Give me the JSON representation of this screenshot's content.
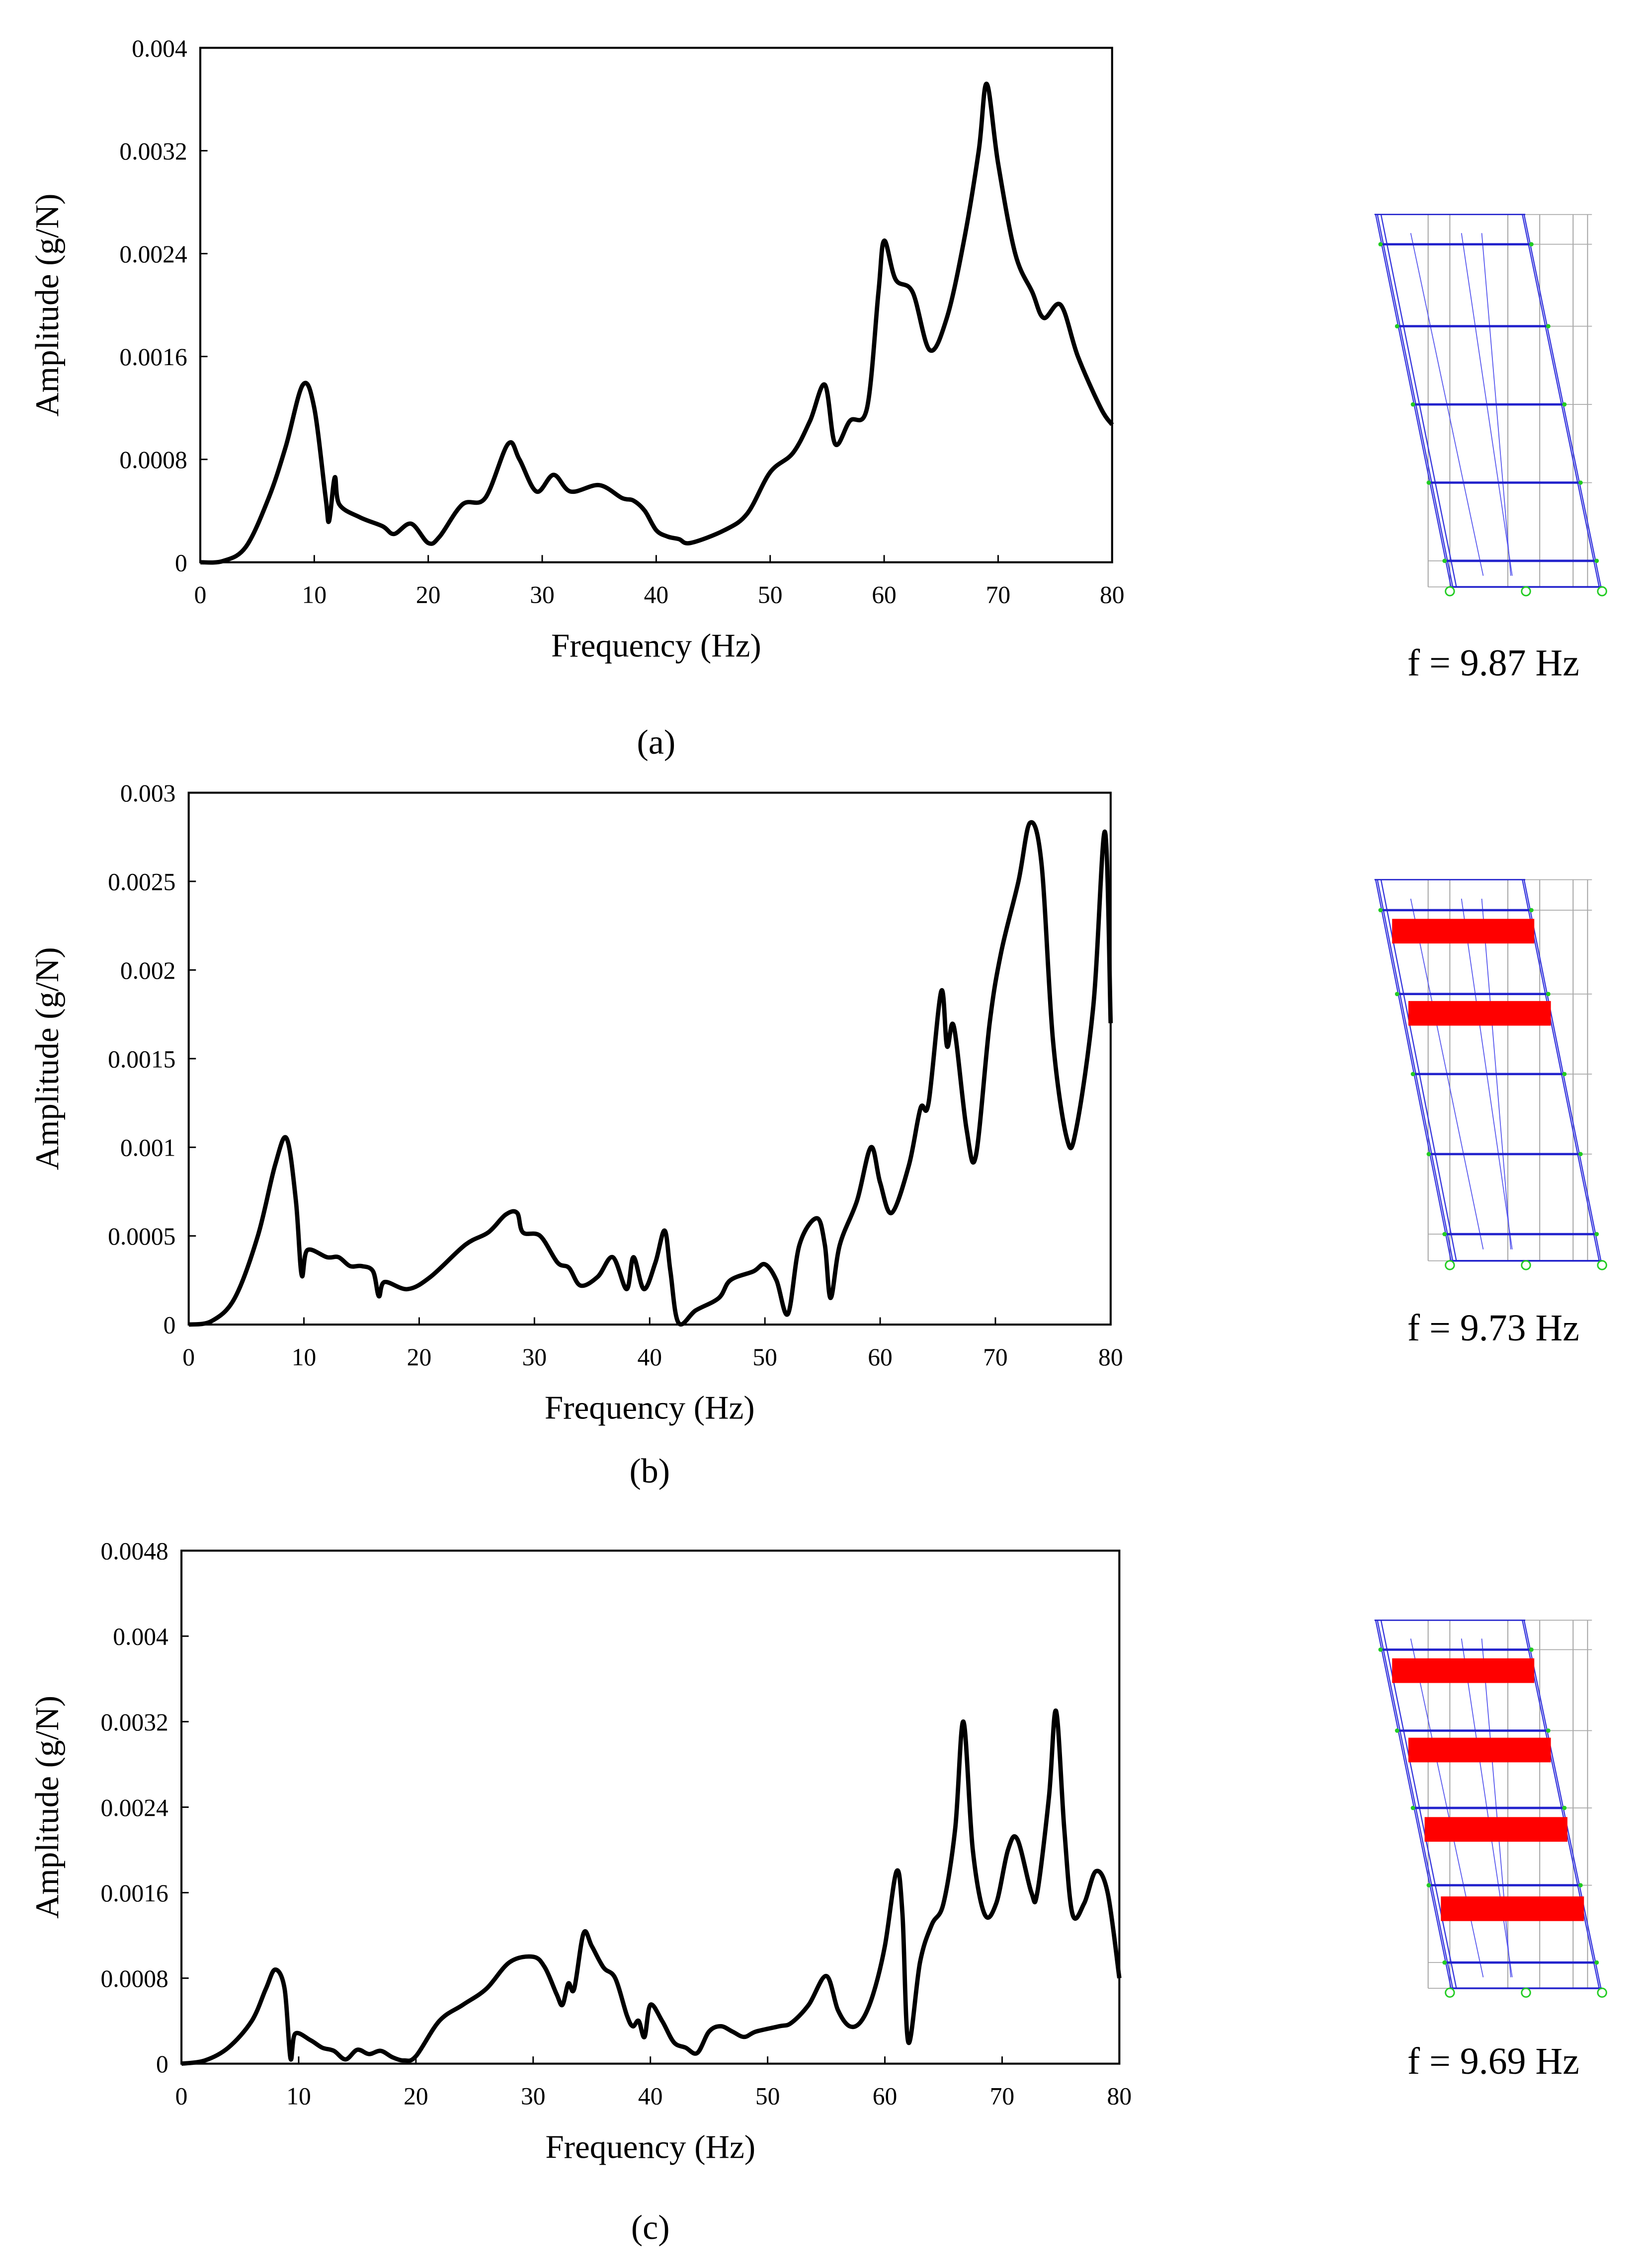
{
  "chart_data": [
    {
      "type": "line",
      "xlabel": "Frequency (Hz)",
      "ylabel": "Amplitude (g/N)",
      "caption": "(a)",
      "mode_label": "f = 9.87 Hz",
      "color": "#000000",
      "xlim": [
        0,
        80
      ],
      "xticks": [
        0,
        10,
        20,
        30,
        40,
        50,
        60,
        70,
        80
      ],
      "ylim": [
        0,
        0.004
      ],
      "yticks": [
        0,
        0.0008,
        0.0016,
        0.0024,
        0.0032,
        0.004
      ],
      "x": [
        0,
        2,
        4,
        6,
        7.5,
        9,
        10,
        11,
        11.3,
        11.8,
        12.2,
        14,
        16,
        17,
        18.5,
        20,
        21,
        23,
        25,
        27,
        28,
        29.5,
        31,
        32.5,
        35,
        37,
        38,
        39,
        40,
        41,
        42,
        43,
        46,
        48,
        50,
        52,
        53.5,
        54.8,
        55.7,
        57,
        58.5,
        59.5,
        60,
        61,
        62.5,
        64,
        65.5,
        67,
        68.3,
        69,
        70,
        71.5,
        73,
        74,
        75.5,
        77,
        79,
        80
      ],
      "values": [
        0,
        1e-05,
        0.00012,
        0.0005,
        0.0009,
        0.00138,
        0.0012,
        0.0005,
        0.00032,
        0.00066,
        0.00045,
        0.00035,
        0.00028,
        0.00022,
        0.0003,
        0.00015,
        0.0002,
        0.00045,
        0.0005,
        0.00092,
        0.0008,
        0.00055,
        0.00068,
        0.00055,
        0.0006,
        0.0005,
        0.00048,
        0.0004,
        0.00025,
        0.0002,
        0.00018,
        0.00015,
        0.00025,
        0.00038,
        0.0007,
        0.00085,
        0.0011,
        0.00138,
        0.00092,
        0.0011,
        0.0012,
        0.0021,
        0.0025,
        0.0022,
        0.0021,
        0.00165,
        0.0019,
        0.0025,
        0.0032,
        0.00372,
        0.0031,
        0.0024,
        0.0021,
        0.0019,
        0.002,
        0.0016,
        0.0012,
        0.00107
      ]
    },
    {
      "type": "line",
      "xlabel": "Frequency (Hz)",
      "ylabel": "Amplitude (g/N)",
      "caption": "(b)",
      "mode_label": "f = 9.73 Hz",
      "color": "#000000",
      "xlim": [
        0,
        80
      ],
      "xticks": [
        0,
        10,
        20,
        30,
        40,
        50,
        60,
        70,
        80
      ],
      "ylim": [
        0,
        0.003
      ],
      "yticks": [
        0,
        0.0005,
        0.001,
        0.0015,
        0.002,
        0.0025,
        0.003
      ],
      "x": [
        0,
        2,
        4,
        6,
        7.5,
        8.5,
        9.3,
        9.8,
        10.3,
        12,
        13,
        14,
        15,
        16,
        16.5,
        17,
        19,
        21,
        24,
        26,
        27.5,
        28.5,
        29,
        30.5,
        32,
        33,
        34,
        35.5,
        36.8,
        38,
        38.6,
        39.5,
        40.5,
        41.3,
        41.8,
        42.5,
        44,
        46,
        47,
        49,
        50,
        51,
        52,
        53,
        54.5,
        55.2,
        55.7,
        56.5,
        58,
        59.2,
        60,
        61,
        62.5,
        63.5,
        64.2,
        65.3,
        65.8,
        66.4,
        67.5,
        68.3,
        69.5,
        70.5,
        72,
        73,
        74,
        75,
        76.2,
        77,
        78.5,
        79.5,
        80
      ],
      "values": [
        0,
        2e-05,
        0.00015,
        0.0005,
        0.0009,
        0.00105,
        0.0007,
        0.00028,
        0.00042,
        0.00038,
        0.00038,
        0.00033,
        0.00033,
        0.0003,
        0.00016,
        0.00024,
        0.0002,
        0.00027,
        0.00045,
        0.00052,
        0.00062,
        0.00063,
        0.00052,
        0.0005,
        0.00035,
        0.00032,
        0.00022,
        0.00027,
        0.00038,
        0.0002,
        0.00038,
        0.0002,
        0.00035,
        0.00053,
        0.0003,
        1e-05,
        8e-05,
        0.00015,
        0.00025,
        0.0003,
        0.00034,
        0.00025,
        6e-05,
        0.00045,
        0.0006,
        0.00045,
        0.00015,
        0.00045,
        0.0007,
        0.001,
        0.0008,
        0.00063,
        0.0009,
        0.00122,
        0.00125,
        0.00188,
        0.00157,
        0.00168,
        0.0011,
        0.00095,
        0.0017,
        0.0021,
        0.0025,
        0.00283,
        0.0026,
        0.0016,
        0.00105,
        0.0011,
        0.0018,
        0.00278,
        0.0017
      ]
    },
    {
      "type": "line",
      "xlabel": "Frequency (Hz)",
      "ylabel": "Amplitude (g/N)",
      "caption": "(c)",
      "mode_label": "f = 9.69 Hz",
      "color": "#000000",
      "xlim": [
        0,
        80
      ],
      "xticks": [
        0,
        10,
        20,
        30,
        40,
        50,
        60,
        70,
        80
      ],
      "ylim": [
        0,
        0.0048
      ],
      "yticks": [
        0,
        0.0008,
        0.0016,
        0.0024,
        0.0032,
        0.004,
        0.0048
      ],
      "x": [
        0,
        2,
        4,
        6,
        7.2,
        8,
        8.8,
        9.3,
        9.7,
        11,
        12,
        13,
        14,
        15,
        16,
        17,
        18,
        19,
        20,
        22,
        24,
        26,
        28,
        30,
        31,
        32,
        32.5,
        33,
        33.5,
        34.3,
        35,
        36,
        37,
        38,
        38.5,
        39,
        39.5,
        40,
        41,
        42,
        43,
        44,
        45,
        46,
        47,
        48,
        49,
        51,
        52,
        53.5,
        55,
        56,
        57,
        58,
        59,
        60,
        61,
        61.5,
        62,
        63,
        64,
        65,
        66,
        66.7,
        67.5,
        68.5,
        69.5,
        70.5,
        71.3,
        72.5,
        73,
        74,
        74.6,
        75.3,
        76,
        77,
        78,
        79,
        80
      ],
      "values": [
        0,
        3e-05,
        0.00015,
        0.0004,
        0.0007,
        0.00088,
        0.0007,
        5e-05,
        0.00028,
        0.00022,
        0.00015,
        0.00012,
        4e-05,
        0.00013,
        9e-05,
        0.00012,
        6e-05,
        3e-05,
        7e-05,
        0.0004,
        0.00055,
        0.0007,
        0.00095,
        0.001,
        0.0009,
        0.00065,
        0.00055,
        0.00075,
        0.0007,
        0.00122,
        0.0011,
        0.0009,
        0.0008,
        0.00045,
        0.00035,
        0.0004,
        0.00025,
        0.00055,
        0.0004,
        0.0002,
        0.00015,
        0.0001,
        0.0003,
        0.00035,
        0.0003,
        0.00025,
        0.0003,
        0.00035,
        0.00038,
        0.00055,
        0.00082,
        0.0005,
        0.00035,
        0.0004,
        0.00065,
        0.0011,
        0.0018,
        0.0014,
        0.0002,
        0.00095,
        0.0013,
        0.0015,
        0.0022,
        0.0032,
        0.002,
        0.0014,
        0.0015,
        0.002,
        0.0021,
        0.0016,
        0.0016,
        0.0025,
        0.0033,
        0.0022,
        0.0014,
        0.0015,
        0.0018,
        0.0016,
        0.0008
      ]
    }
  ]
}
